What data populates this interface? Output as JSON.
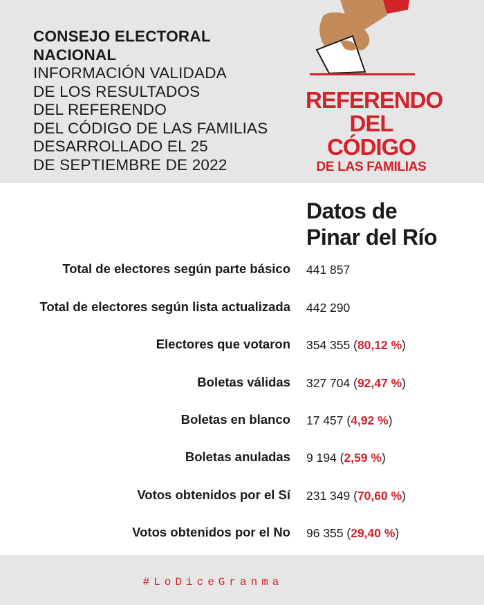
{
  "header": {
    "organization": "CONSEJO ELECTORAL NACIONAL",
    "lines": [
      "INFORMACIÓN VALIDADA",
      "DE LOS RESULTADOS",
      "DEL REFERENDO",
      "DEL CÓDIGO DE LAS FAMILIAS",
      "DESARROLLADO EL 25",
      "DE SEPTIEMBRE DE 2022"
    ]
  },
  "logo": {
    "line1": "REFERENDO",
    "line2": "DEL CÓDIGO",
    "line3": "DE LAS FAMILIAS",
    "icon": "hand-ballot-box-icon",
    "colors": {
      "red": "#d3222a",
      "skin": "#c48b5a"
    }
  },
  "title": {
    "line1": "Datos de",
    "line2": "Pinar del Río"
  },
  "rows": [
    {
      "label": "Total de electores según parte básico",
      "value": "441 857",
      "pct": "",
      "close": ""
    },
    {
      "label": "Total de electores según lista actualizada",
      "value": "442 290",
      "pct": "",
      "close": ""
    },
    {
      "label": "Electores que votaron",
      "value": "354 355 (",
      "pct": "80,12 %",
      "close": ")"
    },
    {
      "label": "Boletas válidas",
      "value": "327 704 (",
      "pct": "92,47 %",
      "close": ")"
    },
    {
      "label": "Boletas en blanco",
      "value": "17 457 (",
      "pct": "4,92 %",
      "close": ")"
    },
    {
      "label": "Boletas anuladas",
      "value": "9 194 (",
      "pct": "2,59 %",
      "close": ")"
    },
    {
      "label": "Votos obtenidos por el Sí",
      "value": "231 349 (",
      "pct": "70,60 %",
      "close": ")"
    },
    {
      "label": "Votos obtenidos por el No",
      "value": "96 355 (",
      "pct": "29,40 %",
      "close": ")"
    }
  ],
  "footer": {
    "hashtag": "#LoDiceGranma"
  },
  "colors": {
    "accent": "#d3222a",
    "header_bg": "#e6e6e6",
    "text": "#1a1a1a"
  }
}
